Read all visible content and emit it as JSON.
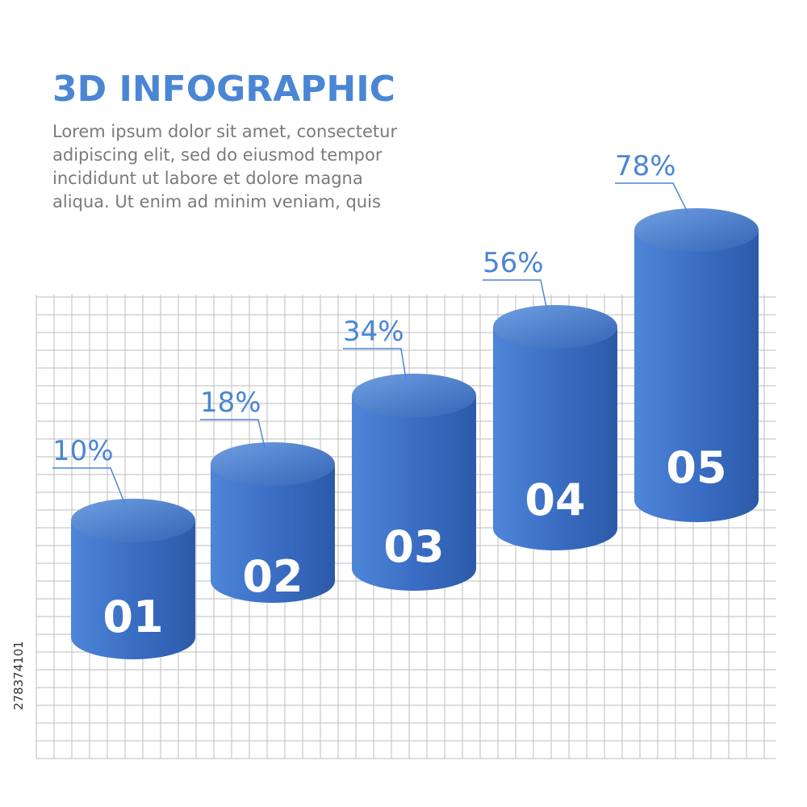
{
  "header": {
    "title": "3D INFOGRAPHIC",
    "body": [
      "Lorem ipsum dolor sit amet, consectetur",
      "adipiscing elit, sed do eiusmod tempor",
      "incididunt ut labore et dolore magna",
      "aliqua. Ut enim ad minim veniam, quis"
    ]
  },
  "items": [
    {
      "number": "01",
      "percent": "10%"
    },
    {
      "number": "02",
      "percent": "18%"
    },
    {
      "number": "03",
      "percent": "34%"
    },
    {
      "number": "04",
      "percent": "56%"
    },
    {
      "number": "05",
      "percent": "78%"
    }
  ],
  "stock_id": "278374101"
}
